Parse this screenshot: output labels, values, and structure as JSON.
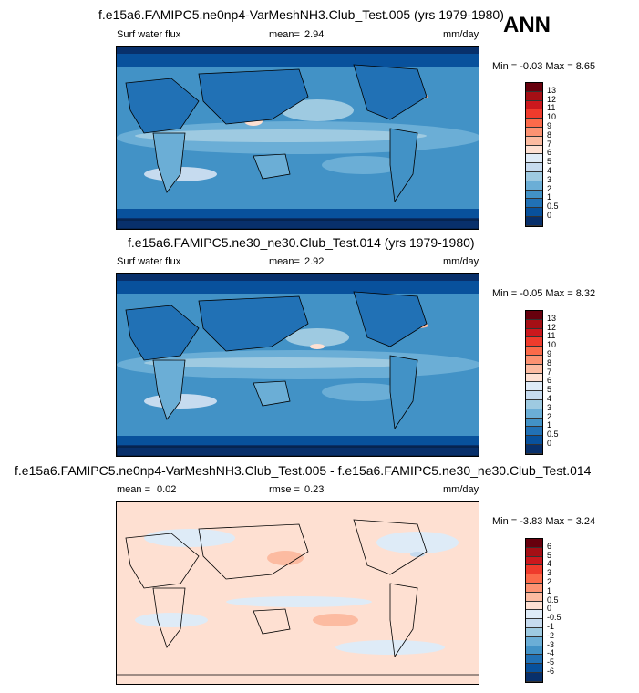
{
  "season_label": "ANN",
  "panels": [
    {
      "title": "f.e15a6.FAMIPC5.ne0np4-VarMeshNH3.Club_Test.005 (yrs 1979-1980)",
      "variable": "Surf water flux",
      "stat1_label": "mean=",
      "stat1_value": "2.94",
      "units": "mm/day",
      "minmax": "Min = -0.03 Max = 8.65",
      "colorbar": {
        "labels": [
          "13",
          "12",
          "11",
          "10",
          "9",
          "8",
          "7",
          "6",
          "5",
          "4",
          "3",
          "2",
          "1",
          "0.5",
          "0"
        ],
        "colors": [
          "#67000d",
          "#a50f15",
          "#cb181d",
          "#ef3b2c",
          "#fb6a4a",
          "#fc9272",
          "#fcbba1",
          "#fee0d2",
          "#deebf7",
          "#c6dbef",
          "#9ecae1",
          "#6baed6",
          "#4292c6",
          "#2171b5",
          "#08519c",
          "#08306b"
        ]
      }
    },
    {
      "title": "f.e15a6.FAMIPC5.ne30_ne30.Club_Test.014 (yrs 1979-1980)",
      "variable": "Surf water flux",
      "stat1_label": "mean=",
      "stat1_value": "2.92",
      "units": "mm/day",
      "minmax": "Min = -0.05 Max = 8.32",
      "colorbar": {
        "labels": [
          "13",
          "12",
          "11",
          "10",
          "9",
          "8",
          "7",
          "6",
          "5",
          "4",
          "3",
          "2",
          "1",
          "0.5",
          "0"
        ],
        "colors": [
          "#67000d",
          "#a50f15",
          "#cb181d",
          "#ef3b2c",
          "#fb6a4a",
          "#fc9272",
          "#fcbba1",
          "#fee0d2",
          "#deebf7",
          "#c6dbef",
          "#9ecae1",
          "#6baed6",
          "#4292c6",
          "#2171b5",
          "#08519c",
          "#08306b"
        ]
      }
    },
    {
      "title": "f.e15a6.FAMIPC5.ne0np4-VarMeshNH3.Club_Test.005 - f.e15a6.FAMIPC5.ne30_ne30.Club_Test.014",
      "stat1_label": "mean =",
      "stat1_value": "0.02",
      "stat2_label": "rmse =",
      "stat2_value": "0.23",
      "units": "mm/day",
      "minmax": "Min = -3.83 Max = 3.24",
      "colorbar": {
        "labels": [
          "6",
          "5",
          "4",
          "3",
          "2",
          "1",
          "0.5",
          "0",
          "-0.5",
          "-1",
          "-2",
          "-3",
          "-4",
          "-5",
          "-6"
        ],
        "colors": [
          "#67000d",
          "#a50f15",
          "#cb181d",
          "#ef3b2c",
          "#fb6a4a",
          "#fc9272",
          "#fcbba1",
          "#fee0d2",
          "#deebf7",
          "#c6dbef",
          "#9ecae1",
          "#6baed6",
          "#4292c6",
          "#2171b5",
          "#08519c",
          "#08306b"
        ]
      }
    }
  ]
}
